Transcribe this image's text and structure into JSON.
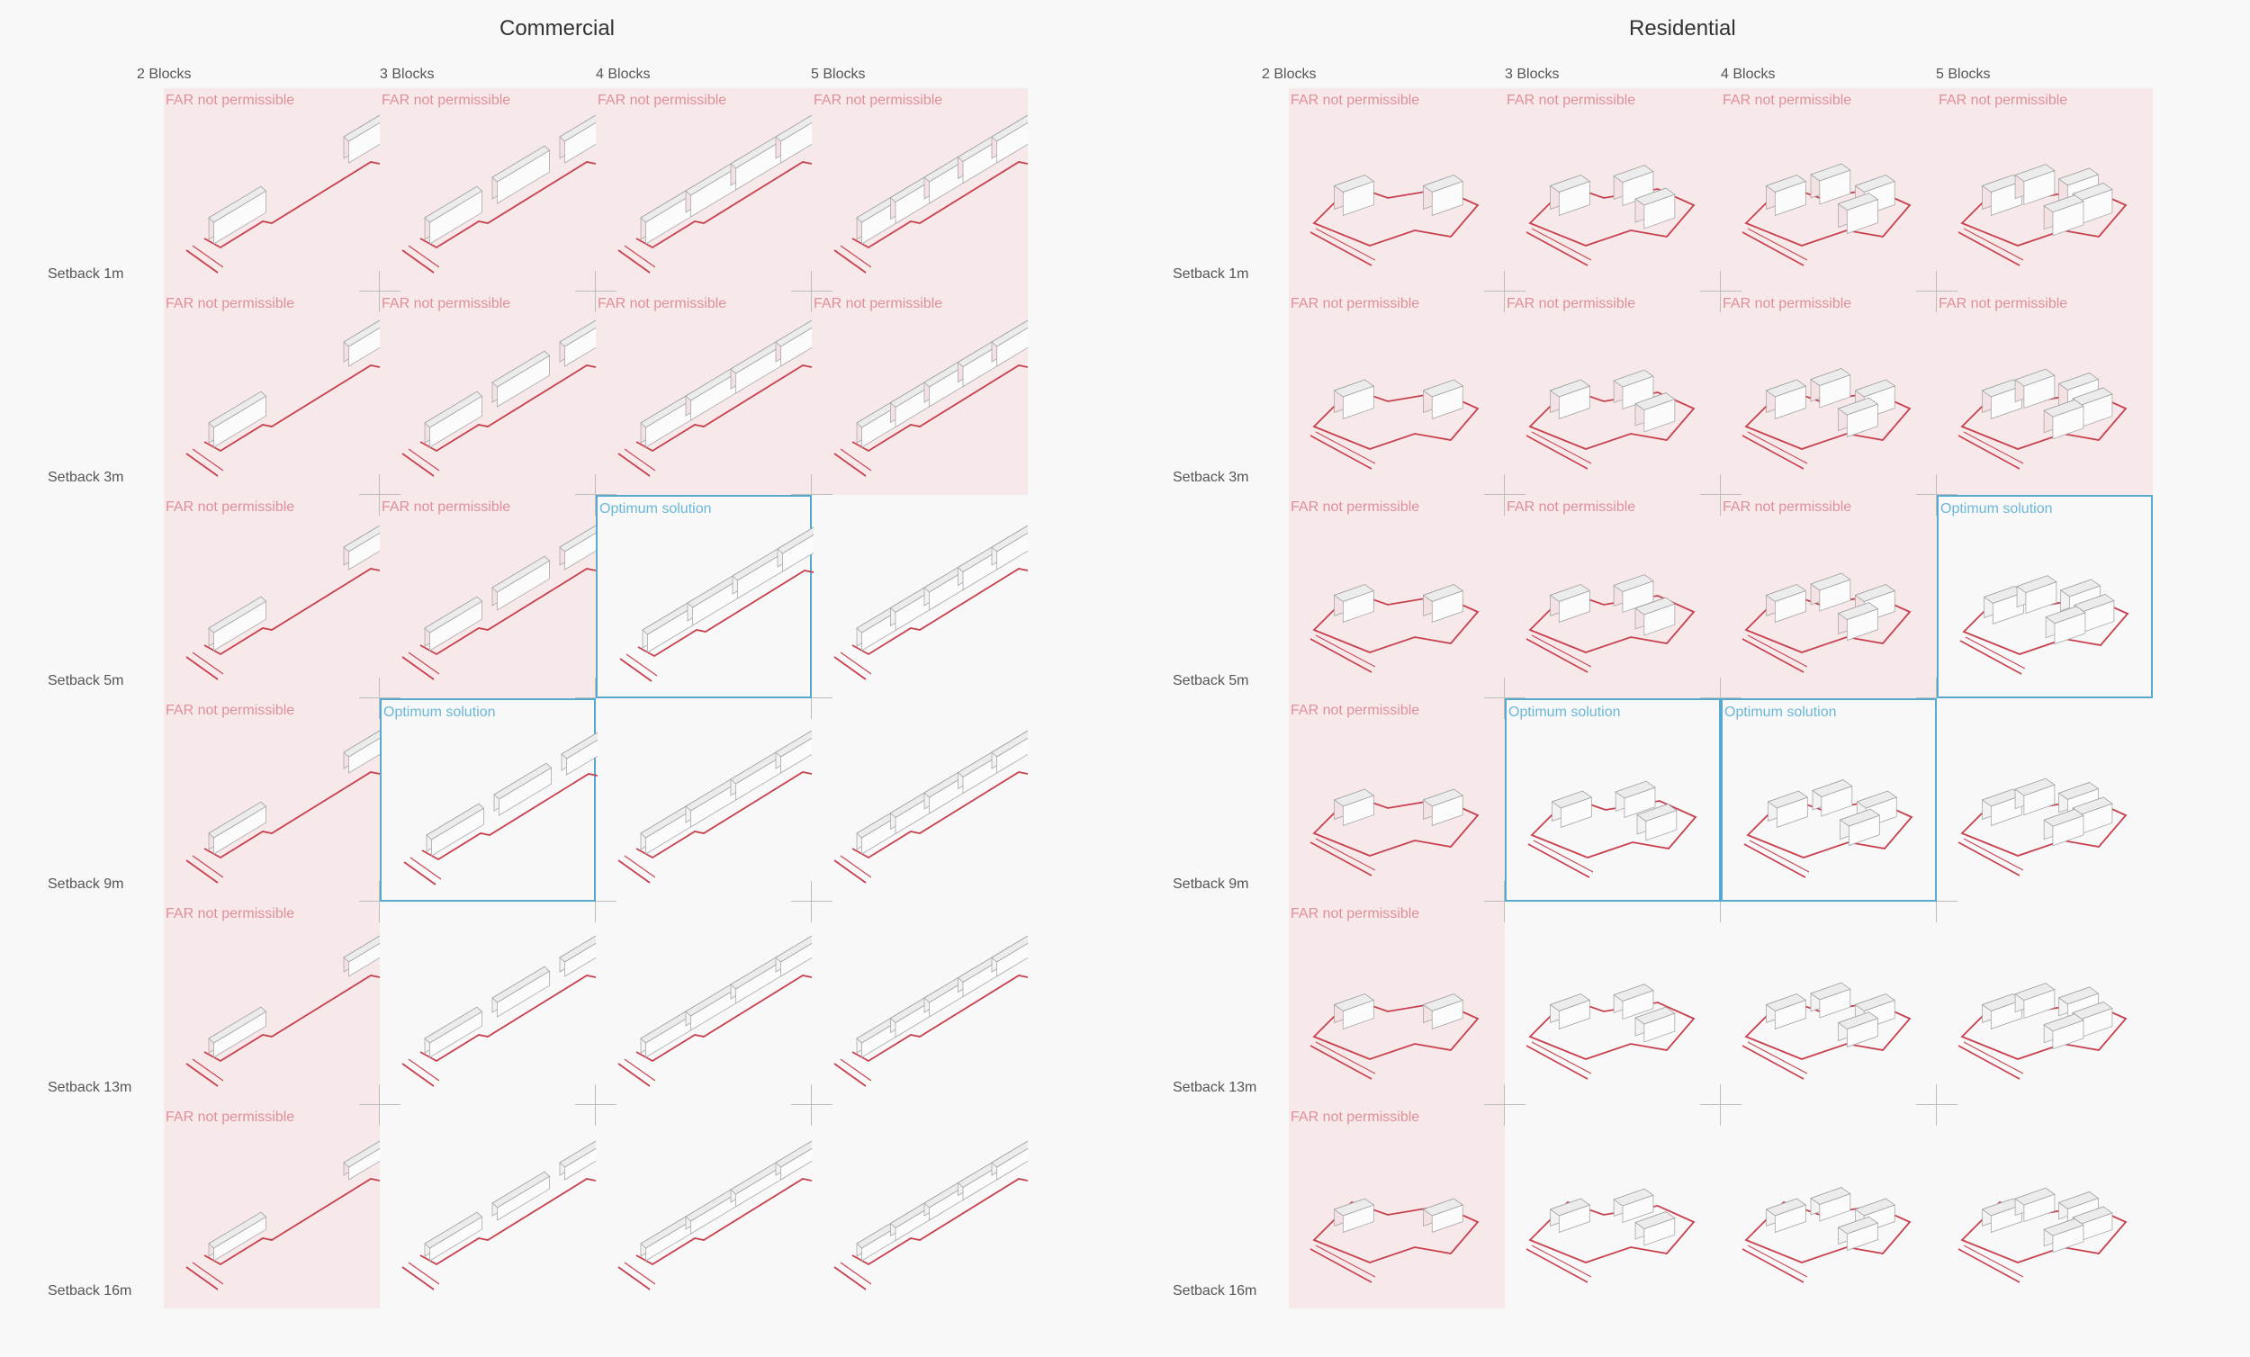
{
  "columns": [
    "2 Blocks",
    "3 Blocks",
    "4 Blocks",
    "5 Blocks"
  ],
  "rows": [
    "Setback 1m",
    "Setback 3m",
    "Setback 5m",
    "Setback 9m",
    "Setback 13m",
    "Setback 16m"
  ],
  "label_text": {
    "far": "FAR not permissible",
    "opt": "Optimum solution"
  },
  "colors": {
    "far_background": "#f7e9ea",
    "far_label": "#e08f99",
    "optimum_border": "#57aacd",
    "site_boundary": "#c8404e"
  },
  "panels": [
    {
      "title": "Commercial",
      "type": "commercial",
      "cells": [
        [
          "far",
          "far",
          "far",
          "far"
        ],
        [
          "far",
          "far",
          "far",
          "far"
        ],
        [
          "far",
          "far",
          "opt",
          "none"
        ],
        [
          "far",
          "opt",
          "none",
          "none"
        ],
        [
          "far",
          "none",
          "none",
          "none"
        ],
        [
          "far",
          "none",
          "none",
          "none"
        ]
      ]
    },
    {
      "title": "Residential",
      "type": "residential",
      "cells": [
        [
          "far",
          "far",
          "far",
          "far"
        ],
        [
          "far",
          "far",
          "far",
          "far"
        ],
        [
          "far",
          "far",
          "far",
          "opt"
        ],
        [
          "far",
          "opt",
          "opt",
          "none"
        ],
        [
          "far",
          "none",
          "none",
          "none"
        ],
        [
          "far",
          "none",
          "none",
          "none"
        ]
      ]
    }
  ]
}
